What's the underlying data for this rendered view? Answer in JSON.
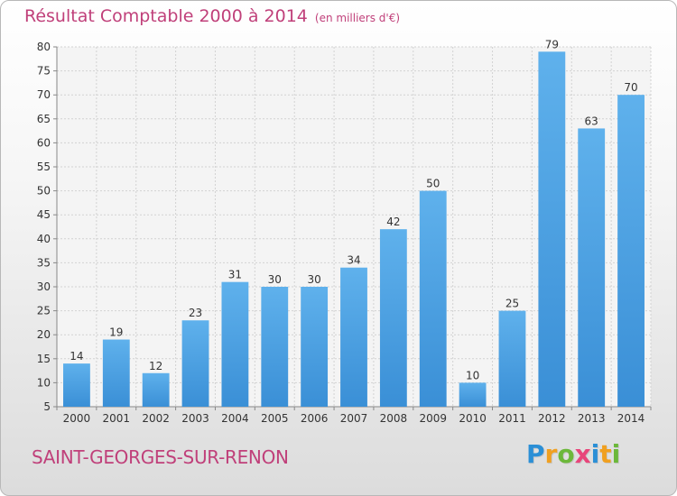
{
  "title": "Résultat Comptable 2000 à 2014",
  "subtitle": "(en milliers d'€)",
  "city": "SAINT-GEORGES-SUR-RENON",
  "logo": {
    "text": "Proxiti",
    "letters": [
      {
        "char": "P",
        "color": "#2b8fd6"
      },
      {
        "char": "r",
        "color": "#f0a020"
      },
      {
        "char": "o",
        "color": "#6cb83a"
      },
      {
        "char": "x",
        "color": "#e8457a"
      },
      {
        "char": "i",
        "color": "#2b8fd6"
      },
      {
        "char": "t",
        "color": "#f0a020"
      },
      {
        "char": "i",
        "color": "#6cb83a"
      }
    ]
  },
  "chart_data": {
    "type": "bar",
    "title": "Résultat Comptable 2000 à 2014",
    "subtitle": "(en milliers d'€)",
    "categories": [
      "2000",
      "2001",
      "2002",
      "2003",
      "2004",
      "2005",
      "2006",
      "2007",
      "2008",
      "2009",
      "2010",
      "2011",
      "2012",
      "2013",
      "2014"
    ],
    "values": [
      14,
      19,
      12,
      23,
      31,
      30,
      30,
      34,
      42,
      50,
      10,
      25,
      79,
      63,
      70
    ],
    "ylim": [
      5,
      80
    ],
    "yticks": [
      5,
      10,
      15,
      20,
      25,
      30,
      35,
      40,
      45,
      50,
      55,
      60,
      65,
      70,
      75,
      80
    ],
    "xlabel": "",
    "ylabel": "",
    "grid": true,
    "bar_color": "#3a8fd6",
    "bar_color_light": "#5fb1ec"
  }
}
